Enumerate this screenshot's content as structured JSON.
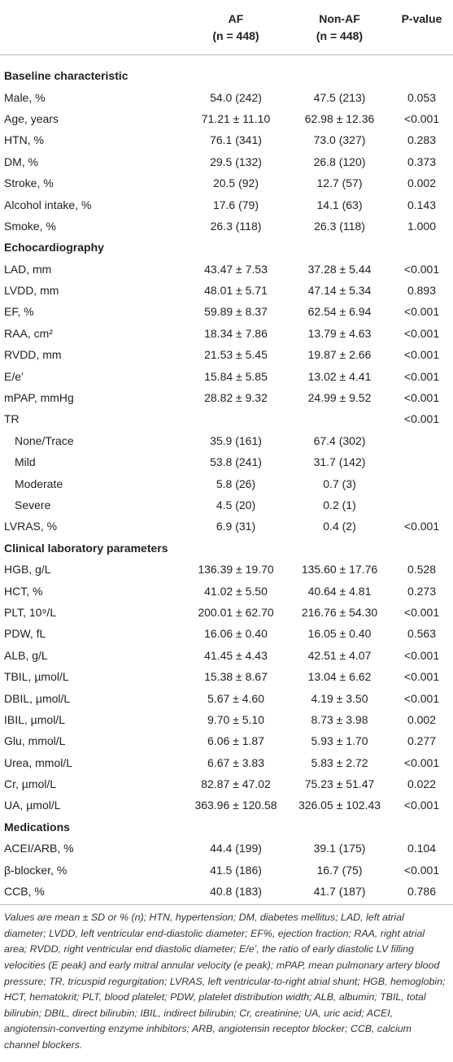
{
  "table": {
    "columns": [
      {
        "name": "AF",
        "sub": "(n = 448)"
      },
      {
        "name": "Non-AF",
        "sub": "(n = 448)"
      },
      {
        "name": "P-value"
      }
    ],
    "sections": [
      {
        "title": "Baseline characteristic",
        "rows": [
          [
            "Male, %",
            "54.0 (242)",
            "47.5 (213)",
            "0.053"
          ],
          [
            "Age, years",
            "71.21 ± 11.10",
            "62.98 ± 12.36",
            "<0.001"
          ],
          [
            "HTN, %",
            "76.1 (341)",
            "73.0 (327)",
            "0.283"
          ],
          [
            "DM, %",
            "29.5 (132)",
            "26.8 (120)",
            "0.373"
          ],
          [
            "Stroke, %",
            "20.5 (92)",
            "12.7 (57)",
            "0.002"
          ],
          [
            "Alcohol intake, %",
            "17.6 (79)",
            "14.1 (63)",
            "0.143"
          ],
          [
            "Smoke, %",
            "26.3 (118)",
            "26.3 (118)",
            "1.000"
          ]
        ]
      },
      {
        "title": "Echocardiography",
        "rows": [
          [
            "LAD, mm",
            "43.47 ± 7.53",
            "37.28 ± 5.44",
            "<0.001"
          ],
          [
            "LVDD, mm",
            "48.01 ± 5.71",
            "47.14 ± 5.34",
            "0.893"
          ],
          [
            "EF, %",
            "59.89 ± 8.37",
            "62.54 ± 6.94",
            "<0.001"
          ],
          [
            "RAA, cm²",
            "18.34 ± 7.86",
            "13.79 ± 4.63",
            "<0.001"
          ],
          [
            "RVDD, mm",
            "21.53 ± 5.45",
            "19.87 ± 2.66",
            "<0.001"
          ],
          [
            "E/e’",
            "15.84 ± 5.85",
            "13.02 ± 4.41",
            "<0.001"
          ],
          [
            "mPAP, mmHg",
            "28.82 ± 9.32",
            "24.99 ± 9.52",
            "<0.001"
          ],
          {
            "row": [
              "TR",
              null,
              null,
              "<0.001"
            ],
            "levels": [
              [
                "None/Trace",
                "35.9 (161)",
                "67.4 (302)"
              ],
              [
                "Mild",
                "53.8 (241)",
                "31.7 (142)"
              ],
              [
                "Moderate",
                "5.8 (26)",
                "0.7 (3)"
              ],
              [
                "Severe",
                "4.5 (20)",
                "0.2 (1)"
              ]
            ]
          },
          [
            "LVRAS, %",
            "6.9 (31)",
            "0.4 (2)",
            "<0.001"
          ]
        ]
      },
      {
        "title": "Clinical laboratory parameters",
        "rows": [
          [
            "HGB, g/L",
            "136.39 ± 19.70",
            "135.60 ± 17.76",
            "0.528"
          ],
          [
            "HCT, %",
            "41.02 ± 5.50",
            "40.64 ± 4.81",
            "0.273"
          ],
          [
            "PLT, 10⁹/L",
            "200.01 ± 62.70",
            "216.76 ± 54.30",
            "<0.001"
          ],
          [
            "PDW, fL",
            "16.06 ± 0.40",
            "16.05 ± 0.40",
            "0.563"
          ],
          [
            "ALB, g/L",
            "41.45 ± 4.43",
            "42.51 ± 4.07",
            "<0.001"
          ],
          [
            "TBIL, µmol/L",
            "15.38 ± 8.67",
            "13.04 ± 6.62",
            "<0.001"
          ],
          [
            "DBIL, µmol/L",
            "5.67 ± 4.60",
            "4.19 ± 3.50",
            "<0.001"
          ],
          [
            "IBIL, µmol/L",
            "9.70 ± 5.10",
            "8.73 ± 3.98",
            "0.002"
          ],
          [
            "Glu, mmol/L",
            "6.06 ± 1.87",
            "5.93 ± 1.70",
            "0.277"
          ],
          [
            "Urea, mmol/L",
            "6.67 ± 3.83",
            "5.83 ± 2.72",
            "<0.001"
          ],
          [
            "Cr, µmol/L",
            "82.87 ± 47.02",
            "75.23 ± 51.47",
            "0.022"
          ],
          [
            "UA, µmol/L",
            "363.96 ± 120.58",
            "326.05 ± 102.43",
            "<0.001"
          ]
        ]
      },
      {
        "title": "Medications",
        "rows": [
          [
            "ACEI/ARB, %",
            "44.4 (199)",
            "39.1 (175)",
            "0.104"
          ],
          [
            "β-blocker, %",
            "41.5 (186)",
            "16.7 (75)",
            "<0.001"
          ],
          [
            "CCB, %",
            "40.8 (183)",
            "41.7 (187)",
            "0.786"
          ]
        ]
      }
    ],
    "footnote": "Values are mean ± SD or % (n); HTN, hypertension; DM, diabetes mellitus; LAD, left atrial diameter; LVDD, left ventricular end-diastolic diameter; EF%, ejection fraction; RAA, right atrial area; RVDD, right ventricular end diastolic diameter; E/e’, the ratio of early diastolic LV filling velocities (E peak) and early mitral annular velocity (e peak); mPAP, mean pulmonary artery blood pressure; TR, tricuspid regurgitation; LVRAS, left ventricular-to-right atrial shunt; HGB, hemoglobin; HCT, hematokrit; PLT, blood platelet; PDW, platelet distribution width; ALB, albumin; TBIL, total bilirubin; DBIL, direct bilirubin; IBIL, indirect bilirubin; Cr, creatinine; UA, uric acid; ACEI, angiotensin-converting enzyme inhibitors; ARB, angiotensin receptor blocker; CCB, calcium channel blockers."
  }
}
